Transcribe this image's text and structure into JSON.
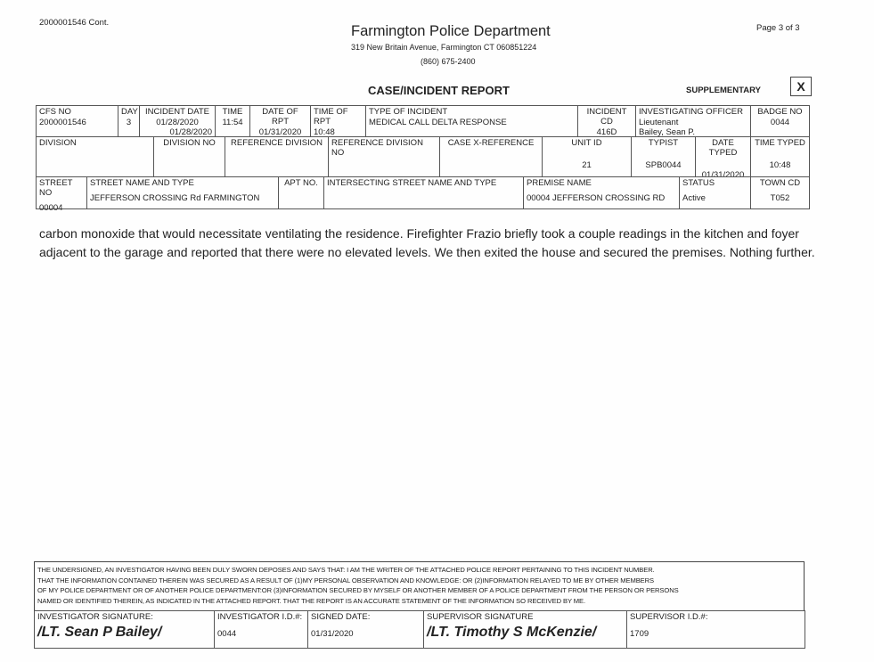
{
  "header": {
    "case_ref": "2000001546 Cont.",
    "department": "Farmington Police Department",
    "address": "319 New Britain Avenue, Farmington  CT 060851224",
    "phone": "(860) 675-2400",
    "page": "Page 3 of 3",
    "report_title": "CASE/INCIDENT REPORT",
    "report_type": "SUPPLEMENTARY",
    "mark": "X"
  },
  "table": {
    "row1": [
      {
        "label": "CFS NO",
        "value": "2000001546"
      },
      {
        "label": "DAY",
        "value": "3"
      },
      {
        "label": "INCIDENT DATE",
        "value": "01/28/2020",
        "value2": "01/28/2020"
      },
      {
        "label": "TIME",
        "value": "11:54"
      },
      {
        "label": "DATE OF RPT",
        "value": "01/31/2020"
      },
      {
        "label": "TIME OF RPT",
        "value": "10:48"
      },
      {
        "label": "TYPE OF INCIDENT",
        "value": "MEDICAL CALL DELTA RESPONSE"
      },
      {
        "label": "INCIDENT CD",
        "value": "416D"
      },
      {
        "label": "INVESTIGATING OFFICER",
        "value": "Lieutenant",
        "value2": "Bailey,  Sean P."
      },
      {
        "label": "BADGE NO",
        "value": "0044"
      }
    ],
    "row2": [
      {
        "label": "DIVISION",
        "value": ""
      },
      {
        "label": "DIVISION NO",
        "value": ""
      },
      {
        "label": "REFERENCE DIVISION",
        "value": ""
      },
      {
        "label": "REFERENCE DIVISION NO",
        "value": ""
      },
      {
        "label": "CASE X-REFERENCE",
        "value": ""
      },
      {
        "label": "UNIT ID",
        "value": "21"
      },
      {
        "label": "TYPIST",
        "value": "SPB0044"
      },
      {
        "label": "DATE TYPED",
        "value": "01/31/2020"
      },
      {
        "label": "TIME TYPED",
        "value": "10:48"
      }
    ],
    "row3": [
      {
        "label": "STREET NO",
        "value": "00004"
      },
      {
        "label": "STREET NAME AND TYPE",
        "value": "JEFFERSON CROSSING Rd   FARMINGTON"
      },
      {
        "label": "APT NO.",
        "value": ""
      },
      {
        "label": "INTERSECTING STREET NAME AND TYPE",
        "value": ""
      },
      {
        "label": "PREMISE NAME",
        "value": "00004 JEFFERSON CROSSING RD"
      },
      {
        "label": "STATUS",
        "value": "Active"
      },
      {
        "label": "TOWN CD",
        "value": "T052"
      }
    ]
  },
  "narrative": "carbon monoxide that would necessitate ventilating the residence.  Firefighter Frazio briefly took a couple readings in the kitchen and foyer adjacent to the garage and reported that there were no elevated levels. We then exited the house and secured the premises. Nothing further.",
  "footer": {
    "oath": [
      "THE UNDERSIGNED, AN INVESTIGATOR HAVING BEEN DULY SWORN  DEPOSES AND SAYS THAT: I AM THE WRITER OF THE ATTACHED POLICE REPORT PERTAINING TO THIS INCIDENT NUMBER.",
      "THAT THE INFORMATION CONTAINED THEREIN WAS SECURED AS A RESULT OF (1)MY PERSONAL OBSERVATION AND KNOWLEDGE: OR (2)INFORMATION RELAYED TO ME BY OTHER MEMBERS",
      "OF MY POLICE DEPARTMENT OR OF ANOTHER POLICE DEPARTMENT:OR (3)INFORMATION SECURED BY MYSELF OR ANOTHER MEMBER OF A POLICE DEPARTMENT FROM THE PERSON OR PERSONS",
      "NAMED OR IDENTIFIED THEREIN, AS INDICATED IN THE ATTACHED REPORT.  THAT THE REPORT IS AN ACCURATE STATEMENT OF THE INFORMATION SO RECEIVED BY ME."
    ],
    "fields": [
      {
        "label": "INVESTIGATOR SIGNATURE:",
        "value": "/LT. Sean P Bailey/",
        "sig": true
      },
      {
        "label": "INVESTIGATOR I.D.#:",
        "value": "0044"
      },
      {
        "label": "SIGNED DATE:",
        "value": "01/31/2020"
      },
      {
        "label": "SUPERVISOR SIGNATURE",
        "value": "/LT. Timothy S McKenzie/",
        "sig": true
      },
      {
        "label": "SUPERVISOR I.D.#:",
        "value": "1709"
      }
    ]
  }
}
